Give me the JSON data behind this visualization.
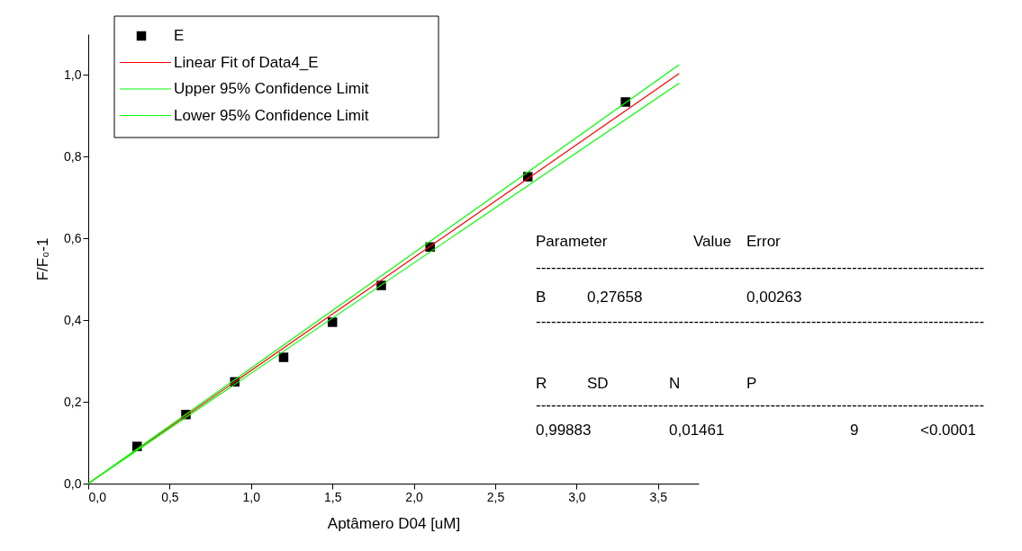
{
  "chart_data": {
    "type": "scatter",
    "xlabel": "Aptâmero D04 [uM]",
    "ylabel": "F/F₀-1",
    "xlim": [
      0,
      3.75
    ],
    "ylim": [
      0,
      1.1
    ],
    "xticks": [
      {
        "value": 0,
        "label": "0,0"
      },
      {
        "value": 0.5,
        "label": "0,5"
      },
      {
        "value": 1,
        "label": "1,0"
      },
      {
        "value": 1.5,
        "label": "1,5"
      },
      {
        "value": 2,
        "label": "2,0"
      },
      {
        "value": 2.5,
        "label": "2,5"
      },
      {
        "value": 3,
        "label": "3,0"
      },
      {
        "value": 3.5,
        "label": "3,5"
      }
    ],
    "yticks": [
      {
        "value": 0,
        "label": "0,0"
      },
      {
        "value": 0.2,
        "label": "0,2"
      },
      {
        "value": 0.4,
        "label": "0,4"
      },
      {
        "value": 0.6,
        "label": "0,6"
      },
      {
        "value": 0.8,
        "label": "0,8"
      },
      {
        "value": 1,
        "label": "1,0"
      }
    ],
    "grid": false,
    "legend": "top left",
    "series": [
      {
        "name": "E",
        "marker": "square",
        "color": "#000000",
        "x": [
          0.3,
          0.6,
          0.9,
          1.2,
          1.5,
          1.8,
          2.1,
          2.7,
          3.3
        ],
        "values": [
          0.091,
          0.169,
          0.249,
          0.309,
          0.395,
          0.485,
          0.579,
          0.751,
          0.934
        ]
      },
      {
        "name": "Linear Fit of Data4_E",
        "type": "line",
        "color": "#ff0000",
        "marker": "none",
        "x": [
          0,
          3.63
        ],
        "values": [
          0,
          1.004
        ]
      },
      {
        "name": "Upper 95% Confidence Limit",
        "type": "line",
        "color": "#00ff00",
        "marker": "none",
        "x": [
          0,
          3.63
        ],
        "values": [
          0,
          1.025
        ]
      },
      {
        "name": "Lower 95% Confidence Limit",
        "type": "line",
        "color": "#00ff00",
        "marker": "none",
        "x": [
          0,
          3.63
        ],
        "values": [
          0,
          0.98
        ]
      }
    ],
    "annotations": [
      "Parameter",
      "Value",
      "Error",
      "----------------------------------------------------------------------------------------",
      "B",
      "0,27658",
      "0,00263",
      "----------------------------------------------------------------------------------------",
      "R",
      "SD",
      "N",
      "P",
      "----------------------------------------------------------------------------------------",
      "0,99883",
      "0,01461",
      "9",
      "<0.0001"
    ]
  }
}
